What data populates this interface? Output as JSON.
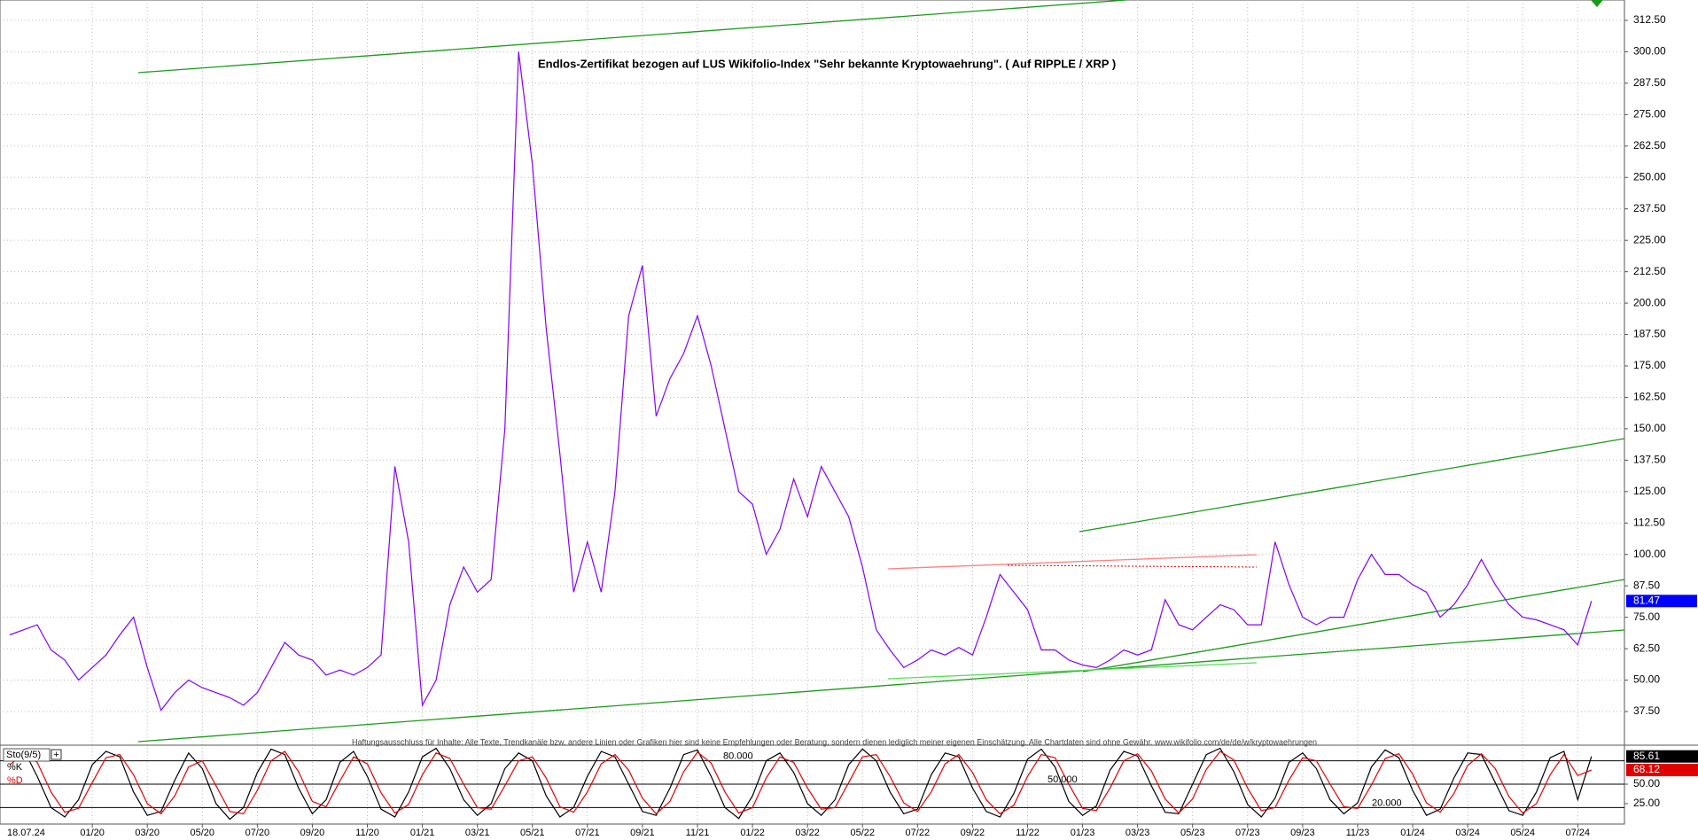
{
  "chart_data": [
    {
      "type": "line",
      "title": "Endlos-Zertifikat bezogen auf LUS Wikifolio-Index \"Sehr bekannte Kryptowaehrung\". ( Auf RIPPLE / XRP )",
      "annotation": "Haftungsausschluss für Inhalte: Alle Texte, Trendkanäle bzw. andere Linien oder Grafiken hier sind keine Empfehlungen oder Beratung, sondern dienen lediglich meiner eigenen Einschätzung. Alle Chartdaten sind ohne Gewähr. www.wikifolio.com/de/de/w/kryptowaehrungen",
      "x_start_label": "18.07.24",
      "categories": [
        null,
        null,
        null,
        null,
        null,
        null,
        "01/20",
        null,
        null,
        null,
        "03/20",
        null,
        null,
        null,
        "05/20",
        null,
        null,
        null,
        "07/20",
        null,
        null,
        null,
        "09/20",
        null,
        null,
        null,
        "11/20",
        null,
        null,
        null,
        "01/21",
        null,
        null,
        null,
        "03/21",
        null,
        null,
        null,
        "05/21",
        null,
        null,
        null,
        "07/21",
        null,
        null,
        null,
        "09/21",
        null,
        null,
        null,
        "11/21",
        null,
        null,
        null,
        "01/22",
        null,
        null,
        null,
        "03/22",
        null,
        null,
        null,
        "05/22",
        null,
        null,
        null,
        "07/22",
        null,
        null,
        null,
        "09/22",
        null,
        null,
        null,
        "11/22",
        null,
        null,
        null,
        "01/23",
        null,
        null,
        null,
        "03/23",
        null,
        null,
        null,
        "05/23",
        null,
        null,
        null,
        "07/23",
        null,
        null,
        null,
        "09/23",
        null,
        null,
        null,
        "11/23",
        null,
        null,
        null,
        "01/24",
        null,
        null,
        null,
        "03/24",
        null,
        null,
        null,
        "05/24",
        null,
        null,
        null,
        "07/24",
        null
      ],
      "values": [
        68,
        70,
        72,
        62,
        58,
        50,
        55,
        60,
        68,
        75,
        55,
        38,
        45,
        50,
        47,
        45,
        43,
        40,
        45,
        55,
        65,
        60,
        58,
        52,
        54,
        52,
        55,
        60,
        135,
        105,
        40,
        50,
        80,
        95,
        85,
        90,
        150,
        300,
        255,
        190,
        140,
        85,
        105,
        85,
        125,
        195,
        215,
        155,
        170,
        180,
        195,
        175,
        150,
        125,
        120,
        100,
        110,
        130,
        115,
        135,
        125,
        115,
        95,
        70,
        62,
        55,
        58,
        62,
        60,
        63,
        60,
        75,
        92,
        85,
        78,
        62,
        62,
        58,
        56,
        55,
        58,
        62,
        60,
        62,
        82,
        72,
        70,
        75,
        80,
        78,
        72,
        72,
        105,
        88,
        75,
        72,
        75,
        75,
        90,
        100,
        92,
        92,
        88,
        85,
        75,
        80,
        88,
        98,
        88,
        80,
        75,
        74,
        72,
        70,
        64,
        81.47
      ],
      "color": "#8000ff",
      "ylim": [
        37.5,
        312.5
      ],
      "yticks": [
        {
          "value": 37.5,
          "label": "37.50"
        },
        {
          "value": 50,
          "label": "50.00"
        },
        {
          "value": 62.5,
          "label": "62.50"
        },
        {
          "value": 75,
          "label": "75.00"
        },
        {
          "value": 87.5,
          "label": "87.50"
        },
        {
          "value": 100,
          "label": "100.00"
        },
        {
          "value": 112.5,
          "label": "112.50"
        },
        {
          "value": 125,
          "label": "125.00"
        },
        {
          "value": 137.5,
          "label": "137.50"
        },
        {
          "value": 150,
          "label": "150.00"
        },
        {
          "value": 162.5,
          "label": "162.50"
        },
        {
          "value": 175,
          "label": "175.00"
        },
        {
          "value": 187.5,
          "label": "187.50"
        },
        {
          "value": 200,
          "label": "200.00"
        },
        {
          "value": 212.5,
          "label": "212.50"
        },
        {
          "value": 225,
          "label": "225.00"
        },
        {
          "value": 237.5,
          "label": "237.50"
        },
        {
          "value": 250,
          "label": "250.00"
        },
        {
          "value": 262.5,
          "label": "262.50"
        },
        {
          "value": 275,
          "label": "275.00"
        },
        {
          "value": 287.5,
          "label": "287.50"
        },
        {
          "value": 300,
          "label": "300.00"
        },
        {
          "value": 312.5,
          "label": "312.50"
        }
      ],
      "grid": true
    },
    {
      "type": "line",
      "title": "Sto(9/5)",
      "series": [
        {
          "name": "%K",
          "color": "#000000",
          "values": [
            80,
            95,
            60,
            20,
            8,
            30,
            75,
            92,
            85,
            40,
            10,
            15,
            55,
            90,
            70,
            25,
            5,
            20,
            65,
            95,
            88,
            45,
            12,
            30,
            78,
            92,
            60,
            18,
            8,
            40,
            85,
            96,
            70,
            30,
            10,
            25,
            70,
            90,
            80,
            35,
            8,
            20,
            60,
            92,
            85,
            50,
            15,
            10,
            45,
            88,
            94,
            60,
            20,
            6,
            35,
            80,
            90,
            65,
            25,
            10,
            30,
            75,
            95,
            80,
            40,
            12,
            18,
            62,
            90,
            85,
            45,
            15,
            8,
            38,
            82,
            95,
            72,
            28,
            10,
            22,
            68,
            92,
            86,
            48,
            14,
            12,
            50,
            88,
            96,
            66,
            24,
            8,
            32,
            78,
            90,
            70,
            30,
            12,
            26,
            72,
            94,
            84,
            42,
            10,
            18,
            58,
            90,
            88,
            52,
            16,
            10,
            40,
            84,
            92,
            30,
            85.61
          ]
        },
        {
          "name": "%D",
          "color": "#e00000",
          "values": [
            75,
            88,
            78,
            40,
            14,
            19,
            52,
            84,
            88,
            62,
            25,
            12,
            35,
            72,
            80,
            48,
            15,
            12,
            42,
            80,
            92,
            66,
            28,
            21,
            54,
            85,
            76,
            39,
            13,
            24,
            62,
            90,
            83,
            50,
            20,
            18,
            48,
            80,
            85,
            58,
            21,
            14,
            40,
            76,
            88,
            68,
            32,
            12,
            28,
            66,
            91,
            77,
            40,
            13,
            20,
            58,
            85,
            78,
            45,
            18,
            20,
            52,
            85,
            88,
            60,
            26,
            15,
            40,
            76,
            88,
            65,
            30,
            12,
            23,
            60,
            88,
            84,
            50,
            19,
            16,
            45,
            80,
            89,
            67,
            31,
            13,
            31,
            69,
            92,
            81,
            45,
            16,
            20,
            55,
            84,
            80,
            50,
            21,
            19,
            49,
            83,
            89,
            63,
            26,
            14,
            38,
            74,
            89,
            70,
            34,
            13,
            25,
            62,
            88,
            61,
            68.12
          ]
        }
      ],
      "ylim": [
        0,
        100
      ],
      "yticks": [
        {
          "value": 25,
          "label": "25.00"
        },
        {
          "value": 50,
          "label": "50.00"
        }
      ],
      "levels": [
        {
          "value": 80,
          "label": "80.000"
        },
        {
          "value": 50,
          "label": "50.000"
        },
        {
          "value": 20,
          "label": "20.000"
        }
      ]
    }
  ]
}
